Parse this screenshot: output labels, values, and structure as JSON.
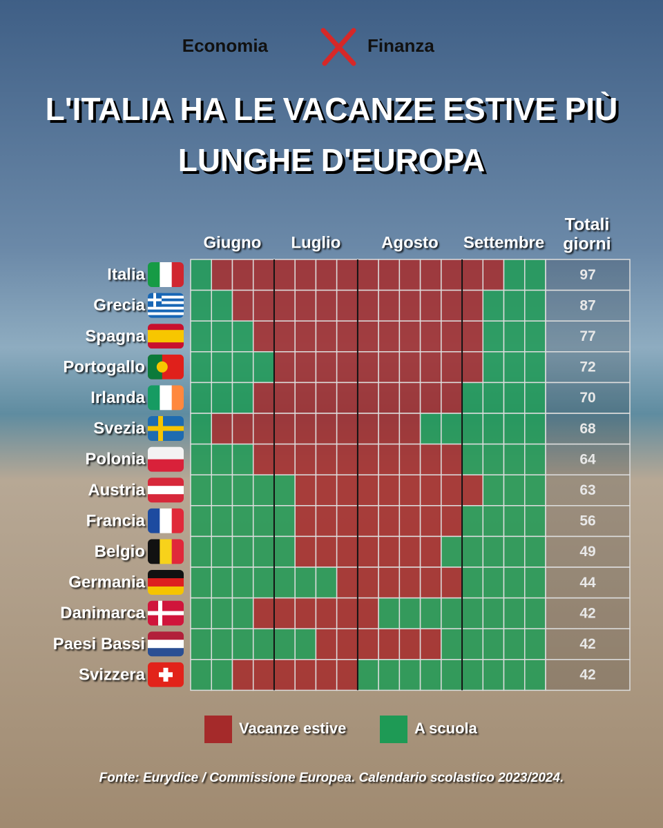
{
  "chart_data": {
    "type": "heatmap",
    "brand": [
      "Economia",
      "Finanza"
    ],
    "title": [
      "L'ITALIA HA LE VACANZE ESTIVE PIÙ",
      "LUNGHE D'EUROPA"
    ],
    "months": [
      {
        "label": "Giugno",
        "weeks": 4
      },
      {
        "label": "Luglio",
        "weeks": 4
      },
      {
        "label": "Agosto",
        "weeks": 5
      },
      {
        "label": "Settembre",
        "weeks": 4
      }
    ],
    "totals_header": [
      "Totali",
      "giorni"
    ],
    "legend": [
      {
        "name": "Vacanze estive",
        "color": "#a52a2a"
      },
      {
        "name": "A scuola",
        "color": "#1e9a55"
      }
    ],
    "rows": [
      {
        "name": "Italia",
        "total": 97,
        "cells": [
          1,
          0,
          0,
          0,
          0,
          0,
          0,
          0,
          0,
          0,
          0,
          0,
          0,
          0,
          0,
          1,
          1
        ]
      },
      {
        "name": "Grecia",
        "total": 87,
        "cells": [
          1,
          1,
          0,
          0,
          0,
          0,
          0,
          0,
          0,
          0,
          0,
          0,
          0,
          0,
          1,
          1,
          1
        ]
      },
      {
        "name": "Spagna",
        "total": 77,
        "cells": [
          1,
          1,
          1,
          0,
          0,
          0,
          0,
          0,
          0,
          0,
          0,
          0,
          0,
          0,
          1,
          1,
          1
        ]
      },
      {
        "name": "Portogallo",
        "total": 72,
        "cells": [
          1,
          1,
          1,
          1,
          0,
          0,
          0,
          0,
          0,
          0,
          0,
          0,
          0,
          0,
          1,
          1,
          1
        ]
      },
      {
        "name": "Irlanda",
        "total": 70,
        "cells": [
          1,
          1,
          1,
          0,
          0,
          0,
          0,
          0,
          0,
          0,
          0,
          0,
          0,
          1,
          1,
          1,
          1
        ]
      },
      {
        "name": "Svezia",
        "total": 68,
        "cells": [
          1,
          0,
          0,
          0,
          0,
          0,
          0,
          0,
          0,
          0,
          0,
          1,
          1,
          1,
          1,
          1,
          1
        ]
      },
      {
        "name": "Polonia",
        "total": 64,
        "cells": [
          1,
          1,
          1,
          0,
          0,
          0,
          0,
          0,
          0,
          0,
          0,
          0,
          0,
          1,
          1,
          1,
          1
        ]
      },
      {
        "name": "Austria",
        "total": 63,
        "cells": [
          1,
          1,
          1,
          1,
          1,
          0,
          0,
          0,
          0,
          0,
          0,
          0,
          0,
          0,
          1,
          1,
          1
        ]
      },
      {
        "name": "Francia",
        "total": 56,
        "cells": [
          1,
          1,
          1,
          1,
          1,
          0,
          0,
          0,
          0,
          0,
          0,
          0,
          0,
          1,
          1,
          1,
          1
        ]
      },
      {
        "name": "Belgio",
        "total": 49,
        "cells": [
          1,
          1,
          1,
          1,
          1,
          0,
          0,
          0,
          0,
          0,
          0,
          0,
          1,
          1,
          1,
          1,
          1
        ]
      },
      {
        "name": "Germania",
        "total": 44,
        "cells": [
          1,
          1,
          1,
          1,
          1,
          1,
          1,
          0,
          0,
          0,
          0,
          0,
          0,
          1,
          1,
          1,
          1
        ]
      },
      {
        "name": "Danimarca",
        "total": 42,
        "cells": [
          1,
          1,
          1,
          0,
          0,
          0,
          0,
          0,
          0,
          1,
          1,
          1,
          1,
          1,
          1,
          1,
          1
        ]
      },
      {
        "name": "Paesi Bassi",
        "total": 42,
        "cells": [
          1,
          1,
          1,
          1,
          1,
          1,
          0,
          0,
          0,
          0,
          0,
          0,
          1,
          1,
          1,
          1,
          1
        ]
      },
      {
        "name": "Svizzera",
        "total": 42,
        "cells": [
          1,
          1,
          0,
          0,
          0,
          0,
          0,
          0,
          1,
          1,
          1,
          1,
          1,
          1,
          1,
          1,
          1
        ]
      }
    ],
    "source": "Fonte: Eurydice / Commissione Europea. Calendario scolastico 2023/2024."
  }
}
